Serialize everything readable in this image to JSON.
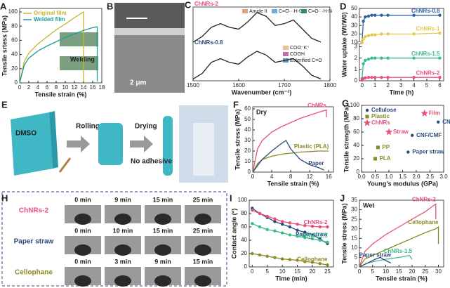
{
  "chart_data": [
    {
      "type": "line",
      "panel": "A",
      "xlabel": "Tensile strain (%)",
      "ylabel": "Tensile srtess (MPa)",
      "xlim": [
        0,
        18
      ],
      "xticks": [
        0,
        2,
        4,
        6,
        8,
        10,
        12,
        14,
        16,
        18
      ],
      "ylim": [
        0,
        105
      ],
      "yticks": [
        0,
        20,
        40,
        60,
        80,
        100
      ],
      "legend": "upper left",
      "annotation": "Welding",
      "series": [
        {
          "name": "Original film",
          "color": "#c9b52a",
          "x": [
            0,
            1,
            2,
            4,
            6,
            8,
            10,
            12,
            14,
            14
          ],
          "values": [
            0,
            30,
            42,
            55,
            65,
            75,
            83,
            92,
            100,
            2
          ]
        },
        {
          "name": "Welded film",
          "color": "#1f9e9a",
          "x": [
            0,
            1,
            2,
            4,
            6,
            8,
            10,
            12,
            14,
            16,
            17,
            17
          ],
          "values": [
            0,
            25,
            35,
            45,
            52,
            58,
            64,
            69,
            74,
            78,
            79,
            2
          ]
        }
      ]
    },
    {
      "type": "line",
      "panel": "C",
      "xlabel": "Wavenumber (cm⁻¹)",
      "xlim": [
        1500,
        1800
      ],
      "xticks": [
        1500,
        1600,
        1700,
        1800
      ],
      "ylim": [
        0,
        2
      ],
      "series_labels": "start",
      "peak_legend": [
        {
          "name": "Amide II",
          "color": "#e8a070"
        },
        {
          "name": "C=O···H-O",
          "color": "#6ab0d8"
        },
        {
          "name": "C=O···H-N",
          "color": "#2a8a80"
        },
        {
          "name": "COO⁻K⁺",
          "color": "#e8c090"
        },
        {
          "name": "COOH",
          "color": "#c070a0"
        },
        {
          "name": "Esterified C=O",
          "color": "#6090c0"
        }
      ],
      "series": [
        {
          "name": "ChNRs-2",
          "color": "#e8507a",
          "x": [
            1500,
            1520,
            1540,
            1560,
            1580,
            1600,
            1620,
            1640,
            1660,
            1680,
            1700,
            1720,
            1740,
            1760,
            1780
          ],
          "values": [
            1.05,
            1.2,
            1.45,
            1.55,
            1.45,
            1.4,
            1.6,
            1.85,
            1.75,
            1.5,
            1.55,
            1.65,
            1.4,
            1.15,
            1.05
          ]
        },
        {
          "name": "ChNRs-0.8",
          "color": "#2a4a7f",
          "x": [
            1500,
            1520,
            1540,
            1560,
            1580,
            1600,
            1620,
            1640,
            1660,
            1680,
            1700,
            1720,
            1740,
            1760,
            1780
          ],
          "values": [
            0.05,
            0.2,
            0.5,
            0.6,
            0.5,
            0.45,
            0.65,
            0.8,
            0.7,
            0.5,
            0.55,
            0.6,
            0.4,
            0.15,
            0.05
          ]
        }
      ]
    },
    {
      "type": "line",
      "panel": "D",
      "xlabel": "Time (h)",
      "ylabel": "Water uptake (Wt/W0)",
      "xlim": [
        -0.2,
        6.3
      ],
      "xticks": [
        0,
        1,
        2,
        3,
        4,
        5,
        6
      ],
      "ylim": [
        0,
        50
      ],
      "yticks": [
        0,
        1,
        2,
        3,
        10,
        20,
        30,
        40,
        50
      ],
      "ybreak": [
        3,
        10
      ],
      "markers": true,
      "series_labels": "end",
      "series": [
        {
          "name": "ChNRs-0.8",
          "color": "#3060a8",
          "x": [
            0,
            0.1,
            0.25,
            0.5,
            0.75,
            1,
            1.5,
            2,
            4,
            6
          ],
          "values": [
            10,
            35,
            40,
            41,
            42,
            42,
            42,
            42,
            42,
            42
          ]
        },
        {
          "name": "ChNRs-1",
          "color": "#e6c84a",
          "x": [
            0,
            0.1,
            0.25,
            0.5,
            0.75,
            1,
            1.5,
            2,
            4,
            6
          ],
          "values": [
            10,
            14,
            17,
            18,
            19,
            19,
            20,
            20,
            20,
            21
          ]
        },
        {
          "name": "ChNRs-1.5",
          "color": "#3cb98a",
          "x": [
            0,
            0.1,
            0.25,
            0.5,
            0.75,
            1,
            1.5,
            2,
            4,
            6
          ],
          "values": [
            0.2,
            1.5,
            1.8,
            1.9,
            2,
            2,
            2,
            2,
            2,
            2
          ]
        },
        {
          "name": "ChNRs-2",
          "color": "#e8507a",
          "x": [
            0,
            0.1,
            0.25,
            0.5,
            0.75,
            1,
            1.5,
            2,
            4,
            6
          ],
          "values": [
            0.05,
            0.2,
            0.25,
            0.3,
            0.3,
            0.3,
            0.3,
            0.3,
            0.3,
            0.3
          ]
        }
      ]
    },
    {
      "type": "line",
      "panel": "F",
      "xlabel": "Tensile strain (%)",
      "ylabel": "Tensile stress (MPa)",
      "xlim": [
        0,
        17
      ],
      "xticks": [
        0,
        4,
        8,
        12,
        16
      ],
      "ylim": [
        0,
        62
      ],
      "yticks": [
        0,
        10,
        20,
        30,
        40,
        50,
        60
      ],
      "annotation": "Dry",
      "series_labels": "end",
      "series": [
        {
          "name": "ChNRs",
          "color": "#e8507a",
          "x": [
            0,
            1,
            2,
            4,
            6,
            8,
            10,
            12,
            14,
            15.5,
            15.5
          ],
          "values": [
            0,
            22,
            30,
            38,
            43,
            47,
            51,
            54,
            57,
            59,
            52
          ]
        },
        {
          "name": "Plastic (PLA)",
          "color": "#8a8a20",
          "x": [
            0,
            1,
            2,
            4,
            6,
            8,
            10,
            12,
            14,
            16
          ],
          "values": [
            0,
            8,
            12,
            15,
            17,
            18,
            19,
            19.5,
            20,
            20
          ]
        },
        {
          "name": "Paper",
          "color": "#2a4a7f",
          "x": [
            0,
            2,
            4,
            6,
            7,
            8,
            10,
            12,
            14,
            15
          ],
          "values": [
            0,
            12,
            20,
            27,
            30,
            22,
            12,
            7,
            4,
            2
          ]
        }
      ]
    },
    {
      "type": "scatter",
      "panel": "G",
      "xlabel": "Young's modulus (GPa)",
      "ylabel": "Tensile strength (MPa)",
      "xlim": [
        0,
        3
      ],
      "xticks": [
        {
          "value": 0,
          "label": "0.0"
        },
        0.5,
        {
          "value": 1,
          "label": "1.0"
        },
        1.5,
        {
          "value": 2,
          "label": "2.0"
        },
        2.5,
        {
          "value": 3,
          "label": "3.0"
        }
      ],
      "ylim": [
        0,
        100
      ],
      "yticks": [
        0,
        20,
        40,
        60,
        80,
        100
      ],
      "legend": "upper left",
      "series": [
        {
          "name": "Cellulose",
          "color": "#2a4a7f",
          "marker": "circle",
          "x": [
            2.8,
            1.85,
            1.7
          ],
          "values": [
            75,
            55,
            30
          ],
          "point_labels": [
            "CNF/CMF/lignin",
            "CNF/CMF",
            "Paper straw"
          ]
        },
        {
          "name": "Plastic",
          "color": "#8a8a20",
          "marker": "square",
          "x": [
            0.6,
            0.5
          ],
          "values": [
            37,
            20
          ],
          "point_labels": [
            "PP",
            "PLA"
          ]
        },
        {
          "name": "ChNRs",
          "color": "#e8507a",
          "marker": "star",
          "x": [
            2.3,
            1.0
          ],
          "values": [
            88,
            60
          ],
          "point_labels": [
            "Film",
            "Straw"
          ]
        }
      ]
    },
    {
      "type": "line",
      "panel": "I",
      "xlabel": "Time (min)",
      "ylabel": "Contact angle (°)",
      "xlim": [
        -1,
        27
      ],
      "xticks": [
        0,
        5,
        10,
        15,
        20,
        25
      ],
      "ylim": [
        0,
        100
      ],
      "yticks": [
        0,
        20,
        40,
        60,
        80,
        100
      ],
      "markers": true,
      "series_labels": "end",
      "series": [
        {
          "name": "Paper straw",
          "color": "#2a4a7f",
          "x": [
            0,
            2.5,
            5,
            7.5,
            10,
            12.5,
            15,
            17.5,
            20,
            22.5,
            25
          ],
          "values": [
            88,
            80,
            74,
            68,
            64,
            60,
            55,
            52,
            48,
            42,
            35
          ]
        },
        {
          "name": "ChNRs-2",
          "color": "#e8507a",
          "x": [
            0,
            2.5,
            5,
            7.5,
            10,
            12.5,
            15,
            17.5,
            20,
            22.5,
            25
          ],
          "values": [
            85,
            80,
            76,
            72,
            68,
            66,
            64,
            62,
            61,
            60,
            60
          ]
        },
        {
          "name": "ChNRs-1.5",
          "color": "#3cb98a",
          "x": [
            0,
            2.5,
            5,
            7.5,
            10,
            12.5,
            15,
            17.5,
            20,
            22.5,
            25
          ],
          "values": [
            65,
            60,
            56,
            54,
            51,
            48,
            46,
            44,
            42,
            40,
            37
          ]
        },
        {
          "name": "Cellophane",
          "color": "#8a8a20",
          "x": [
            0,
            2.5,
            5,
            7.5,
            10,
            12.5,
            15,
            17.5,
            20,
            22.5,
            25
          ],
          "values": [
            20,
            18,
            16,
            14,
            12,
            11,
            10,
            8,
            7,
            5,
            3
          ]
        }
      ]
    },
    {
      "type": "line",
      "panel": "J",
      "xlabel": "Tensile strain (%)",
      "ylabel": "Tensile stress (MPa)",
      "xlim": [
        0,
        32
      ],
      "xticks": [
        0,
        5,
        10,
        15,
        20,
        25,
        30
      ],
      "ylim": [
        0,
        35
      ],
      "yticks": [
        0,
        5,
        10,
        15,
        20,
        25,
        30,
        35
      ],
      "annotation": "Wet",
      "series_labels": "end",
      "series": [
        {
          "name": "ChNRs-2",
          "color": "#e8507a",
          "x": [
            0,
            2,
            5,
            10,
            15,
            20,
            25,
            28,
            29,
            29
          ],
          "values": [
            0,
            8,
            12,
            17,
            21,
            25,
            29,
            32,
            33,
            25
          ]
        },
        {
          "name": "Cellophane",
          "color": "#8a8a20",
          "x": [
            0,
            2,
            5,
            10,
            15,
            20,
            25,
            29,
            30,
            30
          ],
          "values": [
            0,
            4,
            6,
            9,
            12,
            15,
            18,
            20,
            21,
            12
          ]
        },
        {
          "name": "ChNRs-1.5",
          "color": "#3cb98a",
          "x": [
            0,
            3,
            6,
            10,
            15,
            19,
            20
          ],
          "values": [
            0,
            2,
            3,
            4,
            5,
            6,
            4
          ]
        },
        {
          "name": "Paper straw",
          "color": "#2a4a7f",
          "x": [
            0,
            3,
            6,
            8,
            9,
            12
          ],
          "values": [
            0,
            2,
            4,
            5,
            4,
            2
          ]
        }
      ]
    }
  ],
  "panel_b": {
    "label": "B",
    "scale": "2 μm"
  },
  "panel_e": {
    "label": "E",
    "solvent": "DMSO",
    "step1": "Rolling up",
    "step2": "Drying",
    "note": "No adhesive"
  },
  "panel_h": {
    "label": "H",
    "rows": [
      {
        "name": "ChNRs-2",
        "color": "#e8507a",
        "times": [
          "0 min",
          "9 min",
          "15 min",
          "25 min"
        ]
      },
      {
        "name": "Paper straw",
        "color": "#2a4a7f",
        "times": [
          "0 min",
          "10 min",
          "15 min",
          "25 min"
        ]
      },
      {
        "name": "Cellophane",
        "color": "#8a8a20",
        "times": [
          "0 min",
          "3 min",
          "9 min",
          "15 min"
        ]
      }
    ]
  }
}
